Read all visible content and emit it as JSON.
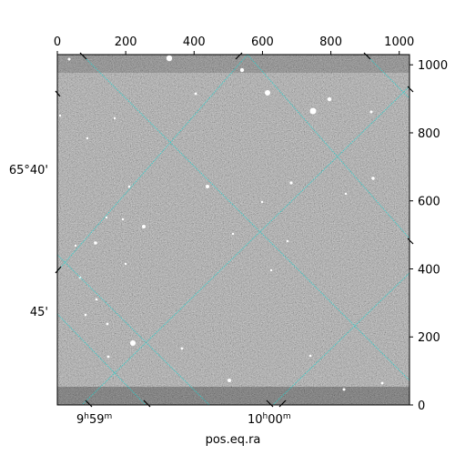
{
  "chart_data": {
    "type": "image",
    "title": "",
    "xlabel": "pos.eq.ra",
    "ylabel": "",
    "pixel_axes": {
      "x_ticks": [
        0,
        200,
        400,
        600,
        800,
        1000
      ],
      "y_ticks": [
        0,
        200,
        400,
        600,
        800,
        1000
      ],
      "xlim": [
        0,
        1030
      ],
      "ylim": [
        0,
        1030
      ]
    },
    "world_axes": {
      "ra_labels": [
        {
          "value_hours": 9.9833,
          "label_main": "9",
          "label_h": "h",
          "label_rest": "59",
          "label_m": "m"
        },
        {
          "value_hours": 10.0,
          "label_main": "10",
          "label_h": "h",
          "label_rest": "00",
          "label_m": "m"
        }
      ],
      "dec_labels": [
        {
          "value_deg": 65.6667,
          "label": "65°40'"
        },
        {
          "value_deg": 65.75,
          "label": "45'"
        }
      ]
    },
    "grid": true,
    "grid_color": "#22d3cf",
    "image_colormap": "gray"
  }
}
